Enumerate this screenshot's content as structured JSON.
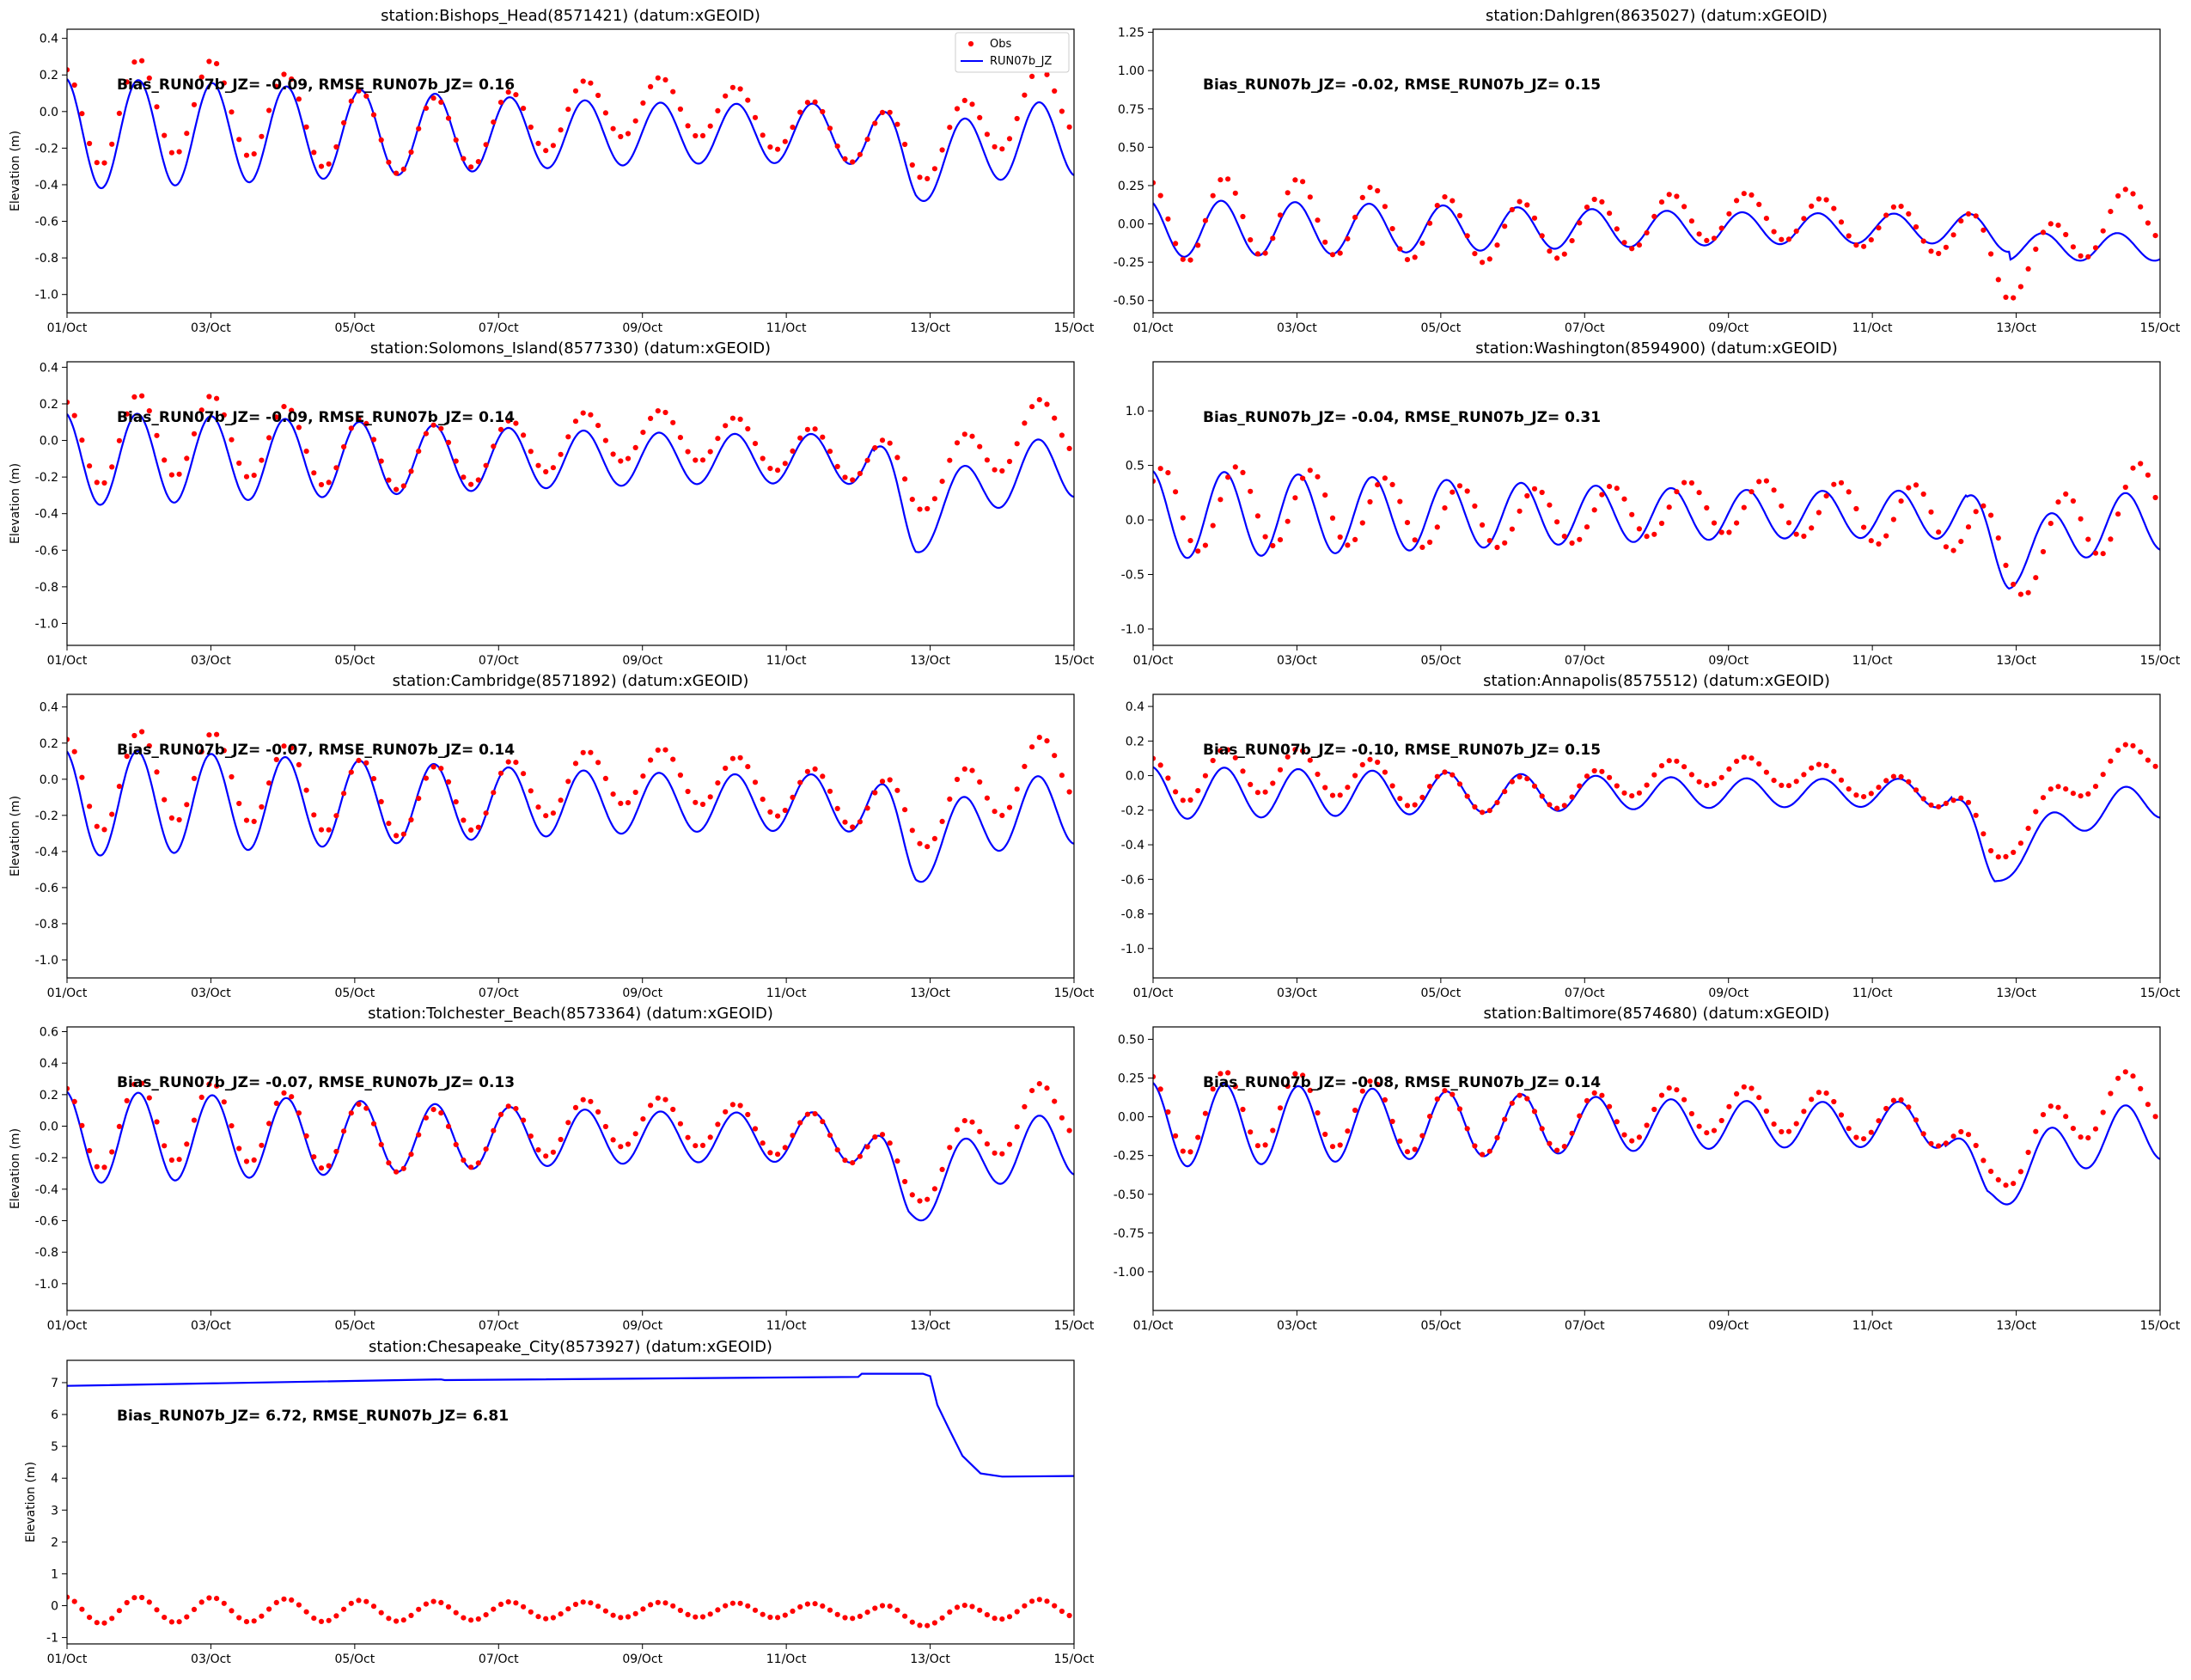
{
  "figure": {
    "x_tick_labels": [
      "01/Oct",
      "03/Oct",
      "05/Oct",
      "07/Oct",
      "09/Oct",
      "11/Oct",
      "13/Oct",
      "15/Oct"
    ],
    "ylabel": "Elevation (m)",
    "colors": {
      "obs": "#ff0000",
      "model": "#0000ff",
      "axes": "#000000"
    },
    "legend": {
      "placement": "upper right of first panel",
      "obs_label": "Obs",
      "model_label": "RUN07b_JZ"
    }
  },
  "chart_data": [
    {
      "type": "line",
      "title": "station:Bishops_Head(8571421) (datum:xGEOID)",
      "stats": "Bias_RUN07b_JZ= -0.09, RMSE_RUN07b_JZ=  0.16",
      "ylabel": "Elevation (m)",
      "xlim": [
        0,
        14
      ],
      "ylim": [
        -1.1,
        0.45
      ],
      "yticks": [
        0.4,
        0.2,
        0.0,
        -0.2,
        -0.4,
        -0.6,
        -0.8,
        -1.0
      ],
      "ytick_decimals": 1,
      "legend": true,
      "series": [
        {
          "name": "RUN07b_JZ",
          "style": "line",
          "base": -0.12,
          "amp": 0.3,
          "phase": 0.0,
          "event_day": 11.8,
          "event_drop": 0.22,
          "recover": 0.5
        },
        {
          "name": "Obs",
          "style": "dots",
          "base": -0.05,
          "amp": 0.28,
          "phase": 0.0,
          "drift": 0.08,
          "event_day": 11.8,
          "event_drop": 0.1,
          "recover": 0.8
        }
      ]
    },
    {
      "type": "line",
      "title": "station:Dahlgren(8635027) (datum:xGEOID)",
      "stats": "Bias_RUN07b_JZ= -0.02, RMSE_RUN07b_JZ=  0.15",
      "ylabel": "",
      "xlim": [
        0,
        14
      ],
      "ylim": [
        -0.58,
        1.27
      ],
      "yticks": [
        1.25,
        1.0,
        0.75,
        0.5,
        0.25,
        0.0,
        -0.25,
        -0.5
      ],
      "ytick_decimals": 2,
      "series": [
        {
          "name": "RUN07b_JZ",
          "style": "line",
          "base": -0.03,
          "amp": 0.18,
          "phase": 0.3,
          "event_day": 11.9,
          "event_drop": 0.05,
          "recover": 0.5,
          "post_amp": 0.5
        },
        {
          "name": "Obs",
          "style": "dots",
          "base": 0.0,
          "amp": 0.27,
          "phase": 0.0,
          "drift": 0.05,
          "event_day": 11.9,
          "event_drop": 0.3,
          "recover": 0.8
        }
      ]
    },
    {
      "type": "line",
      "title": "station:Solomons_Island(8577330) (datum:xGEOID)",
      "stats": "Bias_RUN07b_JZ= -0.09, RMSE_RUN07b_JZ=  0.14",
      "ylabel": "Elevation (m)",
      "xlim": [
        0,
        14
      ],
      "ylim": [
        -1.12,
        0.43
      ],
      "yticks": [
        0.4,
        0.2,
        0.0,
        -0.2,
        -0.4,
        -0.6,
        -0.8,
        -1.0
      ],
      "ytick_decimals": 1,
      "series": [
        {
          "name": "RUN07b_JZ",
          "style": "line",
          "base": -0.1,
          "amp": 0.25,
          "phase": 0.1,
          "event_day": 11.8,
          "event_drop": 0.4,
          "recover": 0.5
        },
        {
          "name": "Obs",
          "style": "dots",
          "base": -0.03,
          "amp": 0.24,
          "phase": 0.0,
          "drift": 0.06,
          "event_day": 11.8,
          "event_drop": 0.18,
          "recover": 1.0
        }
      ]
    },
    {
      "type": "line",
      "title": "station:Washington(8594900) (datum:xGEOID)",
      "stats": "Bias_RUN07b_JZ= -0.04, RMSE_RUN07b_JZ=  0.31",
      "ylabel": "",
      "xlim": [
        0,
        14
      ],
      "ylim": [
        -1.15,
        1.45
      ],
      "yticks": [
        1.0,
        0.5,
        0.0,
        -0.5,
        -1.0
      ],
      "ytick_decimals": 1,
      "series": [
        {
          "name": "RUN07b_JZ",
          "style": "line",
          "base": 0.05,
          "amp": 0.4,
          "phase": 0.0,
          "event_day": 11.9,
          "event_drop": 0.45,
          "recover": 0.8
        },
        {
          "name": "Obs",
          "style": "dots",
          "base": 0.07,
          "amp": 0.45,
          "phase": -1.1,
          "drift": 0.05,
          "event_day": 11.9,
          "event_drop": 0.5,
          "recover": 1.2
        }
      ]
    },
    {
      "type": "line",
      "title": "station:Cambridge(8571892) (datum:xGEOID)",
      "stats": "Bias_RUN07b_JZ= -0.07, RMSE_RUN07b_JZ=  0.14",
      "ylabel": "Elevation (m)",
      "xlim": [
        0,
        14
      ],
      "ylim": [
        -1.1,
        0.47
      ],
      "yticks": [
        0.4,
        0.2,
        0.0,
        -0.2,
        -0.4,
        -0.6,
        -0.8,
        -1.0
      ],
      "ytick_decimals": 1,
      "series": [
        {
          "name": "RUN07b_JZ",
          "style": "line",
          "base": -0.13,
          "amp": 0.29,
          "phase": 0.1,
          "event_day": 11.8,
          "event_drop": 0.3,
          "recover": 0.5
        },
        {
          "name": "Obs",
          "style": "dots",
          "base": -0.05,
          "amp": 0.27,
          "phase": -0.1,
          "drift": 0.07,
          "event_day": 11.8,
          "event_drop": 0.12,
          "recover": 0.9
        }
      ]
    },
    {
      "type": "line",
      "title": "station:Annapolis(8575512) (datum:xGEOID)",
      "stats": "Bias_RUN07b_JZ= -0.10, RMSE_RUN07b_JZ=  0.15",
      "ylabel": "",
      "xlim": [
        0,
        14
      ],
      "ylim": [
        -1.17,
        0.47
      ],
      "yticks": [
        0.4,
        0.2,
        0.0,
        -0.2,
        -0.4,
        -0.6,
        -0.8,
        -1.0
      ],
      "ytick_decimals": 1,
      "series": [
        {
          "name": "RUN07b_JZ",
          "style": "line",
          "base": -0.1,
          "amp": 0.15,
          "phase": 0.0,
          "event_day": 11.7,
          "event_drop": 0.5,
          "recover": 0.3
        },
        {
          "name": "Obs",
          "style": "dots",
          "base": -0.04,
          "amp": 0.14,
          "phase": 0.0,
          "drift": 0.07,
          "event_day": 11.7,
          "event_drop": 0.35,
          "recover": 1.5
        }
      ]
    },
    {
      "type": "line",
      "title": "station:Tolchester_Beach(8573364) (datum:xGEOID)",
      "stats": "Bias_RUN07b_JZ= -0.07, RMSE_RUN07b_JZ=  0.13",
      "ylabel": "Elevation (m)",
      "xlim": [
        0,
        14
      ],
      "ylim": [
        -1.17,
        0.63
      ],
      "yticks": [
        0.6,
        0.4,
        0.2,
        0.0,
        -0.2,
        -0.4,
        -0.6,
        -0.8,
        -1.0
      ],
      "ytick_decimals": 1,
      "series": [
        {
          "name": "RUN07b_JZ",
          "style": "line",
          "base": -0.07,
          "amp": 0.29,
          "phase": 0.0,
          "event_day": 11.7,
          "event_drop": 0.45,
          "recover": 0.4
        },
        {
          "name": "Obs",
          "style": "dots",
          "base": -0.03,
          "amp": 0.27,
          "phase": 0.0,
          "drift": 0.06,
          "event_day": 11.7,
          "event_drop": 0.3,
          "recover": 1.4
        }
      ]
    },
    {
      "type": "line",
      "title": "station:Baltimore(8574680) (datum:xGEOID)",
      "stats": "Bias_RUN07b_JZ= -0.08, RMSE_RUN07b_JZ=  0.14",
      "ylabel": "",
      "xlim": [
        0,
        14
      ],
      "ylim": [
        -1.25,
        0.58
      ],
      "yticks": [
        0.5,
        0.25,
        0.0,
        -0.25,
        -0.5,
        -0.75,
        -1.0
      ],
      "ytick_decimals": 2,
      "series": [
        {
          "name": "RUN07b_JZ",
          "style": "line",
          "base": -0.05,
          "amp": 0.27,
          "phase": 0.0,
          "event_day": 11.6,
          "event_drop": 0.5,
          "recover": 0.3
        },
        {
          "name": "Obs",
          "style": "dots",
          "base": 0.0,
          "amp": 0.26,
          "phase": 0.0,
          "drift": 0.05,
          "event_day": 11.6,
          "event_drop": 0.35,
          "recover": 1.4
        }
      ]
    },
    {
      "type": "line",
      "title": "station:Chesapeake_City(8573927) (datum:xGEOID)",
      "stats": "Bias_RUN07b_JZ=  6.72, RMSE_RUN07b_JZ=  6.81",
      "ylabel": "Elevation (m)",
      "xlim": [
        0,
        14
      ],
      "ylim": [
        -1.2,
        7.7
      ],
      "yticks": [
        7,
        6,
        5,
        4,
        3,
        2,
        1,
        0,
        -1
      ],
      "ytick_decimals": 0,
      "series": [
        {
          "name": "RUN07b_JZ",
          "style": "step",
          "points": [
            [
              0,
              6.9
            ],
            [
              5.2,
              7.1
            ],
            [
              5.25,
              7.08
            ],
            [
              11.0,
              7.18
            ],
            [
              11.05,
              7.28
            ],
            [
              11.9,
              7.28
            ],
            [
              12.0,
              7.2
            ],
            [
              12.1,
              6.3
            ],
            [
              12.25,
              5.6
            ],
            [
              12.45,
              4.7
            ],
            [
              12.7,
              4.15
            ],
            [
              13.0,
              4.05
            ],
            [
              14,
              4.07
            ]
          ]
        },
        {
          "name": "Obs",
          "style": "dots",
          "base": -0.15,
          "amp": 0.42,
          "phase": 0.0,
          "drift": 0.02,
          "event_day": 11.8,
          "event_drop": 0.25,
          "recover": 1.0
        }
      ]
    }
  ]
}
